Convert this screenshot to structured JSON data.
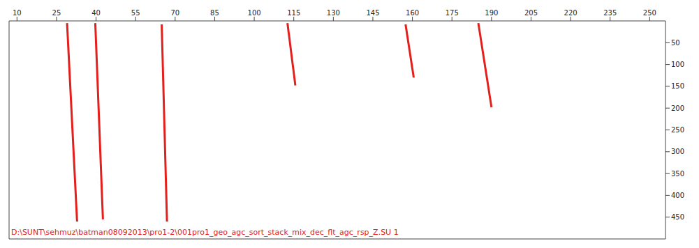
{
  "chart_data": {
    "type": "line",
    "xlim": [
      7,
      256
    ],
    "xticks": [
      10,
      25,
      40,
      55,
      70,
      85,
      100,
      115,
      130,
      145,
      160,
      175,
      190,
      205,
      220,
      235,
      250
    ],
    "ylim": [
      0,
      500
    ],
    "yticks": [
      50,
      100,
      150,
      200,
      250,
      300,
      350,
      400,
      450
    ],
    "grid": false,
    "series": [
      {
        "color": "#e3201c",
        "x": [
          29,
          32.8
        ],
        "values": [
          5,
          460
        ]
      },
      {
        "color": "#e3201c",
        "x": [
          39.7,
          42.6
        ],
        "values": [
          5,
          455
        ]
      },
      {
        "color": "#e3201c",
        "x": [
          64.9,
          66.9
        ],
        "values": [
          8,
          460
        ]
      },
      {
        "color": "#e3201c",
        "x": [
          112.6,
          115.6
        ],
        "values": [
          5,
          148
        ]
      },
      {
        "color": "#e3201c",
        "x": [
          157.4,
          160.5
        ],
        "values": [
          8,
          130
        ]
      },
      {
        "color": "#e3201c",
        "x": [
          185,
          190
        ],
        "values": [
          5,
          198
        ]
      }
    ],
    "annotations": [
      {
        "text": "D:\\SUNT\\sehmuz\\batman08092013\\pro1-2\\001pro1_geo_agc_sort_stack_mix_dec_flt_agc_rsp_Z.SU  1",
        "color": "#e3201c"
      }
    ]
  }
}
